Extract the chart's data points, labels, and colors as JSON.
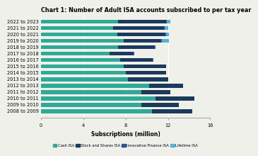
{
  "title": "Chart 1: Number of Adult ISA accounts subscribed to per tax year",
  "years": [
    "2008 to 2009",
    "2009 to 2010",
    "2010 to 2011",
    "2011 to 2012",
    "2012 to 2013",
    "2013 to 2014",
    "2014 to 2015",
    "2015 to 2016",
    "2016 to 2017",
    "2017 to 2018",
    "2018 to 2019",
    "2019 to 2020",
    "2020 to 2021",
    "2021 to 2022",
    "2022 to 2023"
  ],
  "cash_isa": [
    10.5,
    9.5,
    10.8,
    9.5,
    10.2,
    8.2,
    8.0,
    7.8,
    7.5,
    6.5,
    7.3,
    7.8,
    7.2,
    6.8,
    7.3
  ],
  "stocks_shares_isa": [
    3.8,
    3.5,
    3.7,
    2.7,
    3.2,
    3.8,
    3.8,
    4.0,
    3.0,
    2.2,
    3.4,
    3.5,
    4.5,
    4.8,
    4.5
  ],
  "innovative_finance_isa": [
    0.0,
    0.0,
    0.0,
    0.0,
    0.0,
    0.0,
    0.0,
    0.0,
    0.1,
    0.1,
    0.1,
    0.1,
    0.1,
    0.1,
    0.1
  ],
  "lifetime_isa": [
    0.0,
    0.0,
    0.0,
    0.0,
    0.0,
    0.0,
    0.0,
    0.0,
    0.0,
    0.0,
    0.0,
    0.7,
    0.3,
    0.3,
    0.3
  ],
  "colors": {
    "cash_isa": "#2eaa96",
    "stocks_shares_isa": "#1b3a5c",
    "innovative_finance_isa": "#2355a0",
    "lifetime_isa": "#5aafd4"
  },
  "xlabel": "Subscriptions (million)",
  "xlim": [
    0,
    16.0
  ],
  "xticks": [
    0.0,
    4.0,
    8.0,
    12.0,
    16.0
  ],
  "legend_labels": [
    "Cash ISA",
    "Stock and Shares ISA",
    "Innovative Finance ISA",
    "Lifetime ISA"
  ],
  "background_color": "#f0f0eb",
  "title_fontsize": 5.8,
  "label_fontsize": 5.5,
  "tick_fontsize": 4.8
}
